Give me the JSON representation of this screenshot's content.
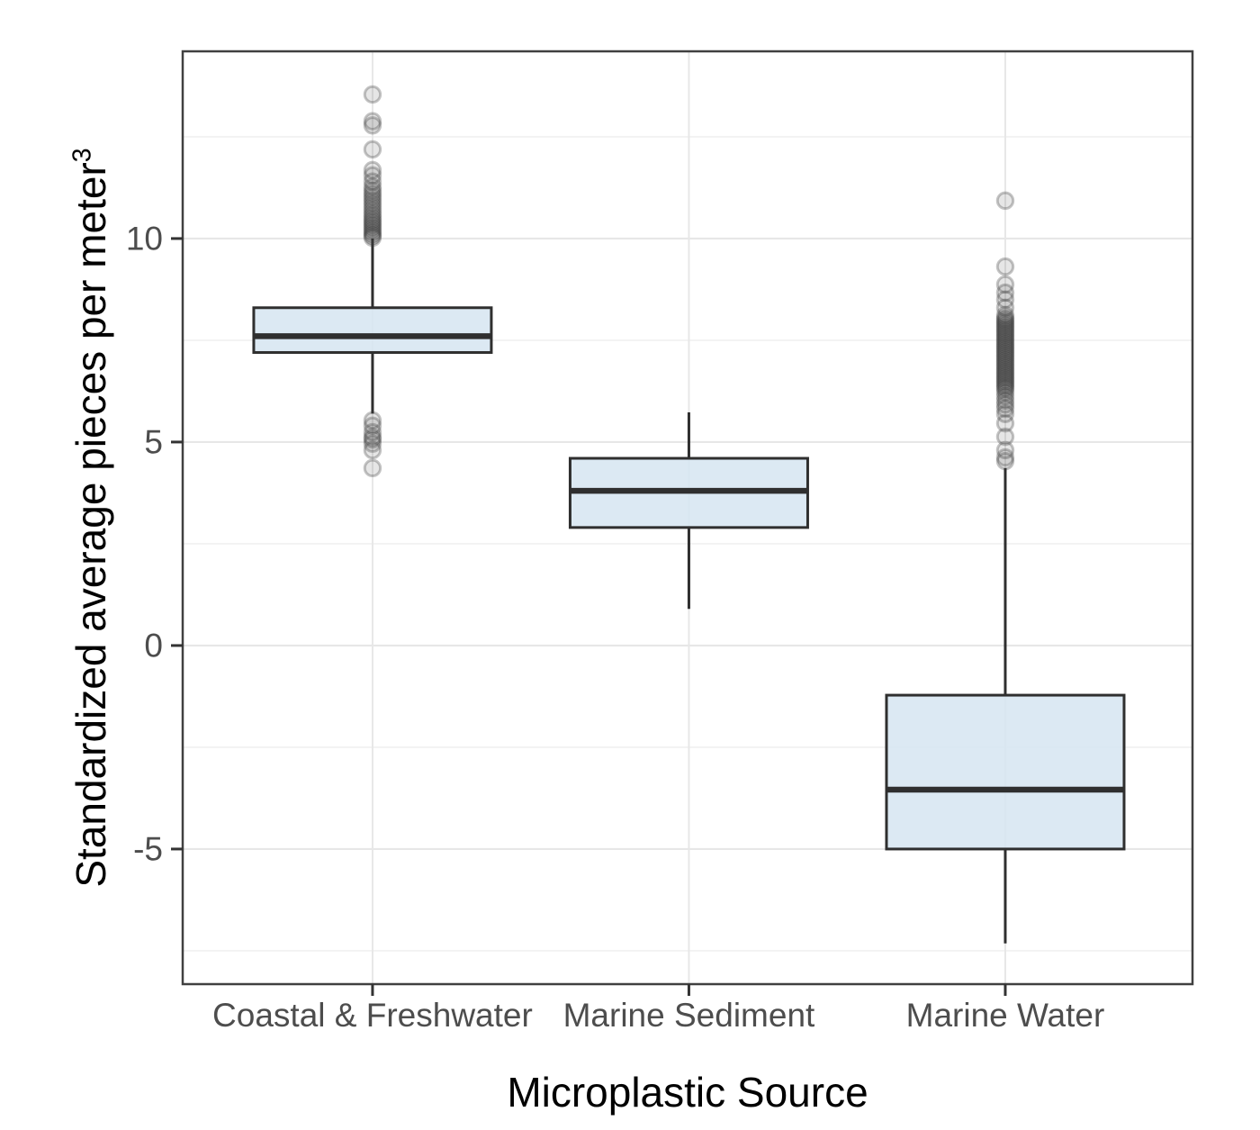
{
  "chart_data": {
    "type": "boxplot",
    "title": "",
    "xlabel": "Microplastic Source",
    "ylabel": "Standardized average pieces per meter",
    "ylabel_superscript": "3",
    "categories": [
      "Coastal & Freshwater",
      "Marine Sediment",
      "Marine Water"
    ],
    "y_axis": {
      "ticks": [
        10,
        5,
        0,
        -5
      ],
      "minor_ticks": [
        12.5,
        7.5,
        2.5,
        -2.5,
        -7.5
      ],
      "ylim": [
        -8.32,
        14.6
      ],
      "grid": "on"
    },
    "series": [
      {
        "name": "Coastal & Freshwater",
        "q1": 7.2,
        "median": 7.6,
        "q3": 8.3,
        "whisker_low": 5.7,
        "whisker_high": 10.0,
        "outliers_high": [
          10.02,
          10.07,
          10.12,
          10.18,
          10.24,
          10.3,
          10.36,
          10.42,
          10.48,
          10.55,
          10.62,
          10.7,
          10.78,
          10.86,
          10.94,
          11.02,
          11.1,
          11.18,
          11.27,
          11.4,
          11.55,
          11.68,
          12.19,
          12.78,
          12.88,
          13.54
        ],
        "outliers_low": [
          5.53,
          5.4,
          5.24,
          5.12,
          5.06,
          4.96,
          4.8,
          4.36
        ]
      },
      {
        "name": "Marine Sediment",
        "q1": 2.9,
        "median": 3.8,
        "q3": 4.6,
        "whisker_low": 0.9,
        "whisker_high": 5.73,
        "outliers_high": [],
        "outliers_low": []
      },
      {
        "name": "Marine Water",
        "q1": -5.0,
        "median": -3.54,
        "q3": -1.22,
        "whisker_low": -7.32,
        "whisker_high": 4.36,
        "outliers_high": [
          4.53,
          4.62,
          4.8,
          5.13,
          5.46,
          5.69,
          5.82,
          5.92,
          6.02,
          6.12,
          6.22,
          6.3,
          6.35,
          6.4,
          6.45,
          6.5,
          6.55,
          6.6,
          6.65,
          6.7,
          6.75,
          6.8,
          6.85,
          6.9,
          6.95,
          7.0,
          7.05,
          7.1,
          7.15,
          7.2,
          7.25,
          7.3,
          7.35,
          7.4,
          7.45,
          7.5,
          7.55,
          7.6,
          7.65,
          7.7,
          7.75,
          7.8,
          7.85,
          7.9,
          7.95,
          8.0,
          8.05,
          8.12,
          8.3,
          8.5,
          8.67,
          8.87,
          9.31,
          10.93
        ],
        "outliers_low": []
      }
    ],
    "colors": {
      "background": "#ffffff",
      "box_fill": "#d6e5f1",
      "box_stroke": "#2f2f2f",
      "median": "#2f2f2f",
      "whisker": "#2f2f2f",
      "outlier": "#3c3c3c",
      "grid_major": "#e7e7e7",
      "grid_minor": "#f1f1f1",
      "panel_border": "#404040",
      "tick_mark": "#333333",
      "tick_label": "#4d4d4d",
      "axis_title": "#000000"
    }
  }
}
